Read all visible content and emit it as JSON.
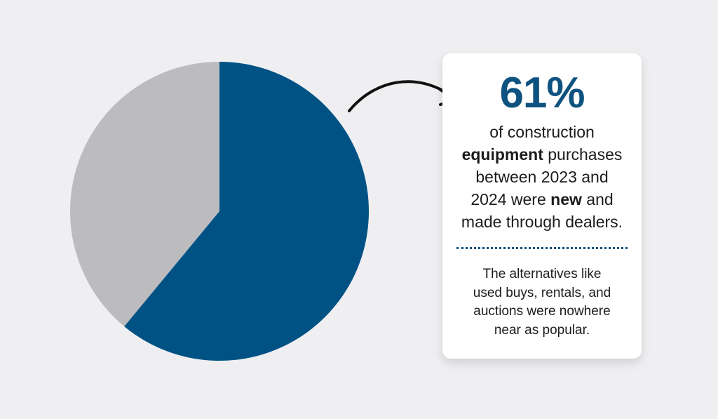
{
  "chart_data": {
    "type": "pie",
    "values": [
      61,
      39
    ],
    "colors": [
      "#005285",
      "#bcbcbf"
    ]
  },
  "callout": {
    "headline": "61%",
    "line1": "of construction",
    "line2_bold": "equipment",
    "line2_rest": " purchases",
    "line3": "between 2023 and",
    "line4_start": "2024 were ",
    "line4_bold": "new",
    "line4_end": " and",
    "line5": "made through dealers.",
    "note_lines": [
      "The alternatives like",
      "used buys, rentals, and",
      "auctions were nowhere",
      "near as popular."
    ]
  },
  "colors": {
    "background": "#efeff1",
    "accent": "#0e5380",
    "card": "#ffffff"
  }
}
